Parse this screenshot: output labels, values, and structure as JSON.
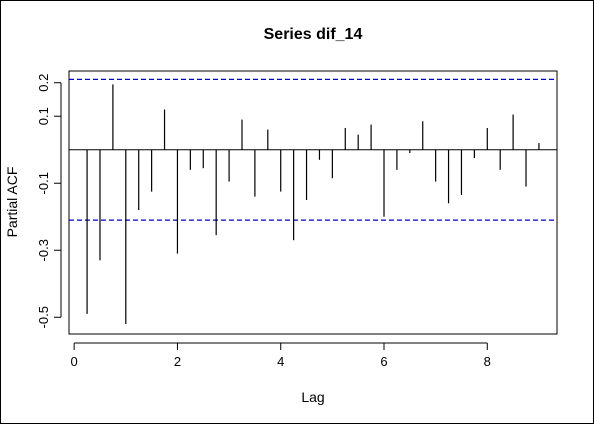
{
  "chart_data": {
    "type": "bar",
    "title": "Series  dif_14",
    "xlabel": "Lag",
    "ylabel": "Partial ACF",
    "xlim": [
      -0.1,
      9.35
    ],
    "ylim": [
      -0.55,
      0.235
    ],
    "x_ticks": [
      0,
      2,
      4,
      6,
      8
    ],
    "x_tick_labels": [
      "0",
      "2",
      "4",
      "6",
      "8"
    ],
    "y_ticks": [
      -0.5,
      -0.3,
      -0.1,
      0.1,
      0.2
    ],
    "y_tick_labels": [
      "-0.5",
      "-0.3",
      "-0.1",
      "0.1",
      "0.2"
    ],
    "confidence_limit": 0.21,
    "grid": false,
    "colors": {
      "bars": "#000000",
      "confidence": "#0000cc",
      "zero_line": "#000000"
    },
    "x": [
      0.25,
      0.5,
      0.75,
      1.0,
      1.25,
      1.5,
      1.75,
      2.0,
      2.25,
      2.5,
      2.75,
      3.0,
      3.25,
      3.5,
      3.75,
      4.0,
      4.25,
      4.5,
      4.75,
      5.0,
      5.25,
      5.5,
      5.75,
      6.0,
      6.25,
      6.5,
      6.75,
      7.0,
      7.25,
      7.5,
      7.75,
      8.0,
      8.25,
      8.5,
      8.75,
      9.0
    ],
    "values": [
      -0.49,
      -0.33,
      0.195,
      -0.52,
      -0.18,
      -0.125,
      0.12,
      -0.31,
      -0.06,
      -0.055,
      -0.255,
      -0.095,
      0.09,
      -0.14,
      0.06,
      -0.125,
      -0.27,
      -0.15,
      -0.03,
      -0.085,
      0.065,
      0.045,
      0.075,
      -0.2,
      -0.06,
      -0.01,
      0.085,
      -0.095,
      -0.16,
      -0.135,
      -0.025,
      0.065,
      -0.06,
      0.105,
      -0.11,
      0.02
    ]
  }
}
